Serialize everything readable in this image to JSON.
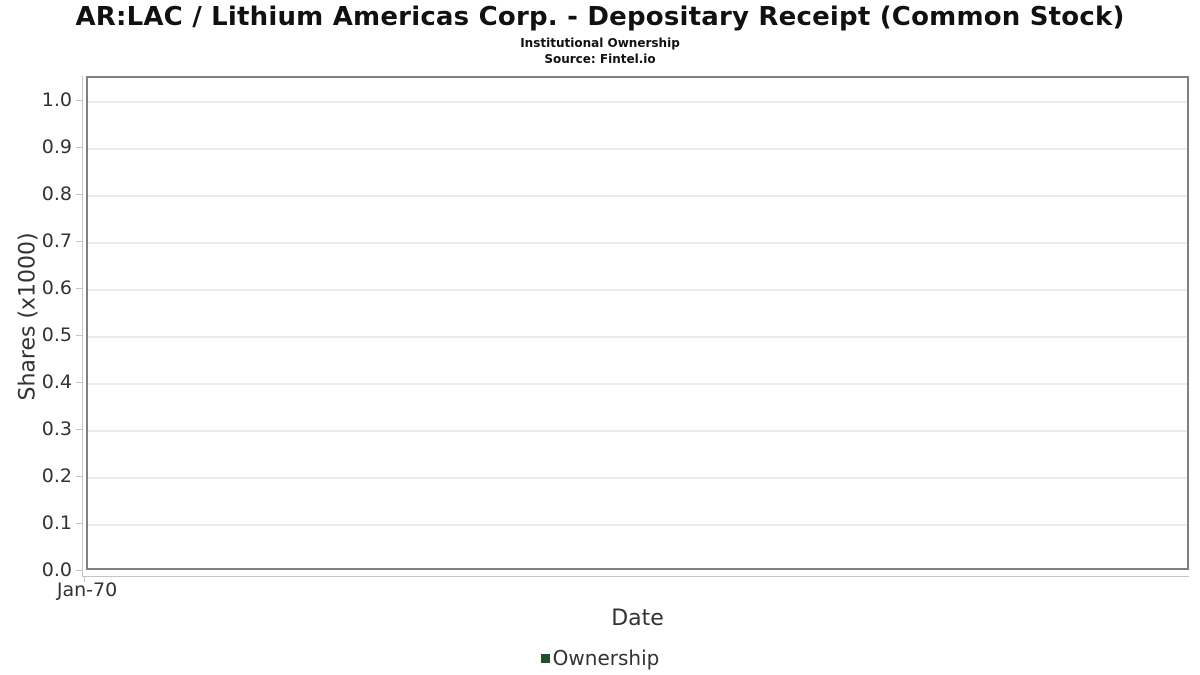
{
  "header": {
    "title": "AR:LAC / Lithium Americas Corp. - Depositary Receipt (Common Stock)",
    "subtitle": "Institutional Ownership",
    "source": "Source: Fintel.io"
  },
  "chart_data": {
    "type": "line",
    "title": "AR:LAC / Lithium Americas Corp. - Depositary Receipt (Common Stock)",
    "subtitle": "Institutional Ownership",
    "source": "Source: Fintel.io",
    "xlabel": "Date",
    "ylabel": "Shares (x1000)",
    "x_tick_labels": [
      "Jan-70"
    ],
    "y_tick_values": [
      0.0,
      0.1,
      0.2,
      0.3,
      0.4,
      0.5,
      0.6,
      0.7,
      0.8,
      0.9,
      1.0
    ],
    "y_tick_decimals": 1,
    "ylim": [
      0.0,
      1.05
    ],
    "grid": true,
    "legend": {
      "position": "bottom",
      "entries": [
        {
          "label": "Ownership",
          "color": "#235029"
        }
      ]
    },
    "series": [
      {
        "name": "Ownership",
        "points": []
      }
    ]
  },
  "colors": {
    "background": "#ffffff",
    "plot_border": "#808080",
    "gridline": "#ebebeb",
    "axis_line": "#c4c4c4",
    "tick_text": "#333333",
    "title_text": "#111111",
    "legend_marker": "#235029"
  }
}
